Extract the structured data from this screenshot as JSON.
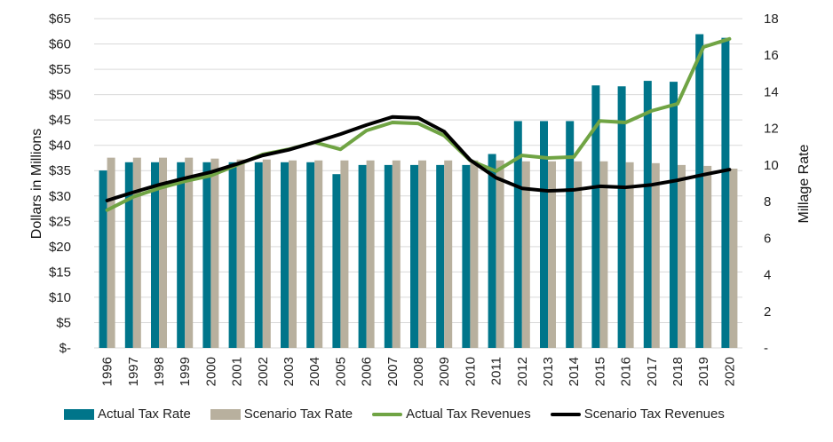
{
  "chart_data": {
    "type": "bar",
    "title": "",
    "xlabel": "",
    "ylabel": "Dollars in Millions",
    "y2label": "Millage Rate",
    "ylim": [
      0,
      65
    ],
    "y2lim": [
      0,
      18
    ],
    "grid": true,
    "legend_position": "bottom",
    "categories": [
      "1996",
      "1997",
      "1998",
      "1999",
      "2000",
      "2001",
      "2002",
      "2003",
      "2004",
      "2005",
      "2006",
      "2007",
      "2008",
      "2009",
      "2010",
      "2011",
      "2012",
      "2013",
      "2014",
      "2015",
      "2016",
      "2017",
      "2018",
      "2019",
      "2020"
    ],
    "y_ticks": [
      "$-",
      "$5",
      "$10",
      "$15",
      "$20",
      "$25",
      "$30",
      "$35",
      "$40",
      "$45",
      "$50",
      "$55",
      "$60",
      "$65"
    ],
    "y2_ticks": [
      "-",
      "2",
      "4",
      "6",
      "8",
      "10",
      "12",
      "14",
      "16",
      "18"
    ],
    "series": [
      {
        "name": "Actual Tax Rate",
        "kind": "bar",
        "axis": "right",
        "color": "#00758A",
        "values": [
          9.7,
          10.15,
          10.15,
          10.15,
          10.15,
          10.15,
          10.15,
          10.15,
          10.15,
          9.5,
          10.0,
          10.0,
          10.0,
          10.0,
          10.0,
          10.6,
          12.4,
          12.4,
          12.4,
          14.35,
          14.3,
          14.6,
          14.55,
          17.15,
          16.95
        ]
      },
      {
        "name": "Scenario Tax Rate",
        "kind": "bar",
        "axis": "right",
        "color": "#B8B09E",
        "values": [
          10.4,
          10.4,
          10.4,
          10.4,
          10.35,
          10.3,
          10.3,
          10.25,
          10.25,
          10.25,
          10.25,
          10.25,
          10.25,
          10.25,
          10.25,
          10.25,
          10.2,
          10.2,
          10.2,
          10.2,
          10.15,
          10.1,
          10.0,
          9.95,
          9.8
        ]
      },
      {
        "name": "Actual Tax Revenues",
        "kind": "line",
        "axis": "left",
        "color": "#70A444",
        "values": [
          27.2,
          29.8,
          31.5,
          32.9,
          34.0,
          36.1,
          38.2,
          39.2,
          40.6,
          39.2,
          42.9,
          44.5,
          44.3,
          41.9,
          37.0,
          34.9,
          38.0,
          37.5,
          37.7,
          44.8,
          44.5,
          46.8,
          48.2,
          59.4,
          61.0
        ]
      },
      {
        "name": "Scenario Tax Revenues",
        "kind": "line",
        "axis": "left",
        "color": "#000000",
        "values": [
          29.1,
          30.7,
          32.2,
          33.5,
          34.7,
          36.3,
          38.0,
          39.1,
          40.6,
          42.2,
          44.0,
          45.6,
          45.4,
          42.7,
          37.1,
          33.6,
          31.5,
          31.0,
          31.2,
          31.9,
          31.7,
          32.2,
          33.1,
          34.2,
          35.2
        ]
      }
    ]
  },
  "colors": {
    "gridline": "#D9D9D9"
  }
}
